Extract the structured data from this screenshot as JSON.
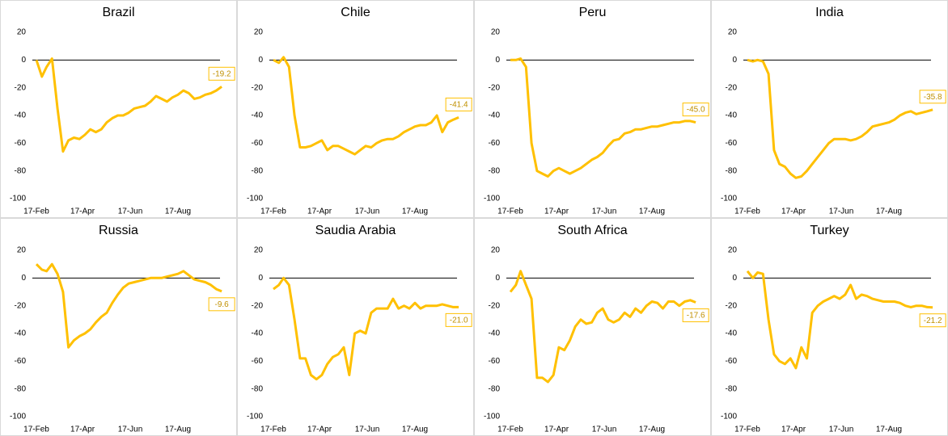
{
  "chart_data": [
    {
      "type": "line",
      "title": "Brazil",
      "label_position": "above",
      "x": [
        "17-Feb",
        "24-Feb",
        "2-Mar",
        "9-Mar",
        "16-Mar",
        "23-Mar",
        "30-Mar",
        "6-Apr",
        "13-Apr",
        "20-Apr",
        "27-Apr",
        "4-May",
        "11-May",
        "18-May",
        "25-May",
        "1-Jun",
        "8-Jun",
        "15-Jun",
        "22-Jun",
        "29-Jun",
        "6-Jul",
        "13-Jul",
        "20-Jul",
        "27-Jul",
        "3-Aug",
        "10-Aug",
        "17-Aug",
        "24-Aug",
        "31-Aug",
        "7-Sep",
        "14-Sep",
        "21-Sep",
        "28-Sep",
        "5-Oct",
        "12-Oct"
      ],
      "series": [
        {
          "color": "#FFC000",
          "values": [
            0,
            -12,
            -5,
            1,
            -35,
            -66,
            -58,
            -56,
            -57,
            -54,
            -50,
            -52,
            -50,
            -45,
            -42,
            -40,
            -40,
            -38,
            -35,
            -34,
            -33,
            -30,
            -26,
            -28,
            -30,
            -27,
            -25,
            -22,
            -24,
            -28,
            -27,
            -25,
            -24,
            -22,
            -19.2
          ]
        }
      ],
      "ylim": [
        -100,
        20
      ],
      "yticks": [
        -100,
        -80,
        -60,
        -40,
        -20,
        0,
        20
      ],
      "xticks": [
        "17-Feb",
        "17-Apr",
        "17-Jun",
        "17-Aug"
      ]
    },
    {
      "type": "line",
      "title": "Chile",
      "label_position": "above",
      "x": [
        "17-Feb",
        "24-Feb",
        "2-Mar",
        "9-Mar",
        "16-Mar",
        "23-Mar",
        "30-Mar",
        "6-Apr",
        "13-Apr",
        "20-Apr",
        "27-Apr",
        "4-May",
        "11-May",
        "18-May",
        "25-May",
        "1-Jun",
        "8-Jun",
        "15-Jun",
        "22-Jun",
        "29-Jun",
        "6-Jul",
        "13-Jul",
        "20-Jul",
        "27-Jul",
        "3-Aug",
        "10-Aug",
        "17-Aug",
        "24-Aug",
        "31-Aug",
        "7-Sep",
        "14-Sep",
        "21-Sep",
        "28-Sep",
        "5-Oct",
        "12-Oct"
      ],
      "series": [
        {
          "color": "#FFC000",
          "values": [
            0,
            -2,
            2,
            -5,
            -40,
            -63,
            -63,
            -62,
            -60,
            -58,
            -65,
            -62,
            -62,
            -64,
            -66,
            -68,
            -65,
            -62,
            -63,
            -60,
            -58,
            -57,
            -57,
            -55,
            -52,
            -50,
            -48,
            -47,
            -47,
            -45,
            -40,
            -52,
            -45,
            -43,
            -41.4
          ]
        }
      ],
      "ylim": [
        -100,
        20
      ],
      "yticks": [
        -100,
        -80,
        -60,
        -40,
        -20,
        0,
        20
      ],
      "xticks": [
        "17-Feb",
        "17-Apr",
        "17-Jun",
        "17-Aug"
      ]
    },
    {
      "type": "line",
      "title": "Peru",
      "label_position": "above",
      "x": [
        "17-Feb",
        "24-Feb",
        "2-Mar",
        "9-Mar",
        "16-Mar",
        "23-Mar",
        "30-Mar",
        "6-Apr",
        "13-Apr",
        "20-Apr",
        "27-Apr",
        "4-May",
        "11-May",
        "18-May",
        "25-May",
        "1-Jun",
        "8-Jun",
        "15-Jun",
        "22-Jun",
        "29-Jun",
        "6-Jul",
        "13-Jul",
        "20-Jul",
        "27-Jul",
        "3-Aug",
        "10-Aug",
        "17-Aug",
        "24-Aug",
        "31-Aug",
        "7-Sep",
        "14-Sep",
        "21-Sep",
        "28-Sep",
        "5-Oct",
        "12-Oct"
      ],
      "series": [
        {
          "color": "#FFC000",
          "values": [
            0,
            0,
            1,
            -5,
            -60,
            -80,
            -82,
            -84,
            -80,
            -78,
            -80,
            -82,
            -80,
            -78,
            -75,
            -72,
            -70,
            -67,
            -62,
            -58,
            -57,
            -53,
            -52,
            -50,
            -50,
            -49,
            -48,
            -48,
            -47,
            -46,
            -45,
            -45,
            -44,
            -44,
            -45
          ],
          "value_labels": [
            null,
            null,
            null,
            null,
            null,
            null,
            null,
            null,
            null,
            null,
            null,
            null,
            null,
            null,
            null,
            null,
            null,
            null,
            null,
            null,
            null,
            null,
            null,
            null,
            null,
            null,
            null,
            null,
            null,
            null,
            null,
            null,
            null,
            null,
            "-45.0"
          ]
        }
      ],
      "ylim": [
        -100,
        20
      ],
      "yticks": [
        -100,
        -80,
        -60,
        -40,
        -20,
        0,
        20
      ],
      "xticks": [
        "17-Feb",
        "17-Apr",
        "17-Jun",
        "17-Aug"
      ]
    },
    {
      "type": "line",
      "title": "India",
      "label_position": "above",
      "x": [
        "17-Feb",
        "24-Feb",
        "2-Mar",
        "9-Mar",
        "16-Mar",
        "23-Mar",
        "30-Mar",
        "6-Apr",
        "13-Apr",
        "20-Apr",
        "27-Apr",
        "4-May",
        "11-May",
        "18-May",
        "25-May",
        "1-Jun",
        "8-Jun",
        "15-Jun",
        "22-Jun",
        "29-Jun",
        "6-Jul",
        "13-Jul",
        "20-Jul",
        "27-Jul",
        "3-Aug",
        "10-Aug",
        "17-Aug",
        "24-Aug",
        "31-Aug",
        "7-Sep",
        "14-Sep",
        "21-Sep",
        "28-Sep",
        "5-Oct",
        "12-Oct"
      ],
      "series": [
        {
          "color": "#FFC000",
          "values": [
            0,
            -1,
            0,
            -1,
            -10,
            -65,
            -75,
            -77,
            -82,
            -85,
            -84,
            -80,
            -75,
            -70,
            -65,
            -60,
            -57,
            -57,
            -57,
            -58,
            -57,
            -55,
            -52,
            -48,
            -47,
            -46,
            -45,
            -43,
            -40,
            -38,
            -37,
            -39,
            -38,
            -37,
            -35.8
          ]
        }
      ],
      "ylim": [
        -100,
        20
      ],
      "yticks": [
        -100,
        -80,
        -60,
        -40,
        -20,
        0,
        20
      ],
      "xticks": [
        "17-Feb",
        "17-Apr",
        "17-Jun",
        "17-Aug"
      ]
    },
    {
      "type": "line",
      "title": "Russia",
      "label_position": "below",
      "x": [
        "17-Feb",
        "24-Feb",
        "2-Mar",
        "9-Mar",
        "16-Mar",
        "23-Mar",
        "30-Mar",
        "6-Apr",
        "13-Apr",
        "20-Apr",
        "27-Apr",
        "4-May",
        "11-May",
        "18-May",
        "25-May",
        "1-Jun",
        "8-Jun",
        "15-Jun",
        "22-Jun",
        "29-Jun",
        "6-Jul",
        "13-Jul",
        "20-Jul",
        "27-Jul",
        "3-Aug",
        "10-Aug",
        "17-Aug",
        "24-Aug",
        "31-Aug",
        "7-Sep",
        "14-Sep",
        "21-Sep",
        "28-Sep",
        "5-Oct",
        "12-Oct"
      ],
      "series": [
        {
          "color": "#FFC000",
          "values": [
            10,
            6,
            5,
            10,
            3,
            -10,
            -50,
            -45,
            -42,
            -40,
            -37,
            -32,
            -28,
            -25,
            -18,
            -12,
            -7,
            -4,
            -3,
            -2,
            -1,
            0,
            0,
            0,
            1,
            2,
            3,
            5,
            2,
            -1,
            -2,
            -3,
            -5,
            -8,
            -9.6
          ]
        }
      ],
      "ylim": [
        -100,
        20
      ],
      "yticks": [
        -100,
        -80,
        -60,
        -40,
        -20,
        0,
        20
      ],
      "xticks": [
        "17-Feb",
        "17-Apr",
        "17-Jun",
        "17-Aug"
      ]
    },
    {
      "type": "line",
      "title": "Saudia Arabia",
      "label_position": "below",
      "x": [
        "17-Feb",
        "24-Feb",
        "2-Mar",
        "9-Mar",
        "16-Mar",
        "23-Mar",
        "30-Mar",
        "6-Apr",
        "13-Apr",
        "20-Apr",
        "27-Apr",
        "4-May",
        "11-May",
        "18-May",
        "25-May",
        "1-Jun",
        "8-Jun",
        "15-Jun",
        "22-Jun",
        "29-Jun",
        "6-Jul",
        "13-Jul",
        "20-Jul",
        "27-Jul",
        "3-Aug",
        "10-Aug",
        "17-Aug",
        "24-Aug",
        "31-Aug",
        "7-Sep",
        "14-Sep",
        "21-Sep",
        "28-Sep",
        "5-Oct",
        "12-Oct"
      ],
      "series": [
        {
          "color": "#FFC000",
          "values": [
            -8,
            -5,
            0,
            -5,
            -30,
            -58,
            -58,
            -70,
            -73,
            -70,
            -62,
            -57,
            -55,
            -50,
            -70,
            -40,
            -38,
            -40,
            -25,
            -22,
            -22,
            -22,
            -15,
            -22,
            -20,
            -22,
            -18,
            -22,
            -20,
            -20,
            -20,
            -19,
            -20,
            -21,
            -21
          ],
          "value_labels": [
            null,
            null,
            null,
            null,
            null,
            null,
            null,
            null,
            null,
            null,
            null,
            null,
            null,
            null,
            null,
            null,
            null,
            null,
            null,
            null,
            null,
            null,
            null,
            null,
            null,
            null,
            null,
            null,
            null,
            null,
            null,
            null,
            null,
            null,
            "-21.0"
          ]
        }
      ],
      "ylim": [
        -100,
        20
      ],
      "yticks": [
        -100,
        -80,
        -60,
        -40,
        -20,
        0,
        20
      ],
      "xticks": [
        "17-Feb",
        "17-Apr",
        "17-Jun",
        "17-Aug"
      ]
    },
    {
      "type": "line",
      "title": "South Africa",
      "label_position": "below",
      "x": [
        "17-Feb",
        "24-Feb",
        "2-Mar",
        "9-Mar",
        "16-Mar",
        "23-Mar",
        "30-Mar",
        "6-Apr",
        "13-Apr",
        "20-Apr",
        "27-Apr",
        "4-May",
        "11-May",
        "18-May",
        "25-May",
        "1-Jun",
        "8-Jun",
        "15-Jun",
        "22-Jun",
        "29-Jun",
        "6-Jul",
        "13-Jul",
        "20-Jul",
        "27-Jul",
        "3-Aug",
        "10-Aug",
        "17-Aug",
        "24-Aug",
        "31-Aug",
        "7-Sep",
        "14-Sep",
        "21-Sep",
        "28-Sep",
        "5-Oct",
        "12-Oct"
      ],
      "series": [
        {
          "color": "#FFC000",
          "values": [
            -10,
            -5,
            5,
            -5,
            -15,
            -72,
            -72,
            -75,
            -70,
            -50,
            -52,
            -45,
            -35,
            -30,
            -33,
            -32,
            -25,
            -22,
            -30,
            -32,
            -30,
            -25,
            -28,
            -22,
            -25,
            -20,
            -17,
            -18,
            -22,
            -17,
            -17,
            -20,
            -17,
            -16,
            -17.6
          ]
        }
      ],
      "ylim": [
        -100,
        20
      ],
      "yticks": [
        -100,
        -80,
        -60,
        -40,
        -20,
        0,
        20
      ],
      "xticks": [
        "17-Feb",
        "17-Apr",
        "17-Jun",
        "17-Aug"
      ]
    },
    {
      "type": "line",
      "title": "Turkey",
      "label_position": "below",
      "x": [
        "17-Feb",
        "24-Feb",
        "2-Mar",
        "9-Mar",
        "16-Mar",
        "23-Mar",
        "30-Mar",
        "6-Apr",
        "13-Apr",
        "20-Apr",
        "27-Apr",
        "4-May",
        "11-May",
        "18-May",
        "25-May",
        "1-Jun",
        "8-Jun",
        "15-Jun",
        "22-Jun",
        "29-Jun",
        "6-Jul",
        "13-Jul",
        "20-Jul",
        "27-Jul",
        "3-Aug",
        "10-Aug",
        "17-Aug",
        "24-Aug",
        "31-Aug",
        "7-Sep",
        "14-Sep",
        "21-Sep",
        "28-Sep",
        "5-Oct",
        "12-Oct"
      ],
      "series": [
        {
          "color": "#FFC000",
          "values": [
            5,
            0,
            4,
            3,
            -30,
            -55,
            -60,
            -62,
            -58,
            -65,
            -50,
            -58,
            -25,
            -20,
            -17,
            -15,
            -13,
            -15,
            -12,
            -5,
            -15,
            -12,
            -13,
            -15,
            -16,
            -17,
            -17,
            -17,
            -18,
            -20,
            -21,
            -20,
            -20,
            -21,
            -21.2
          ]
        }
      ],
      "ylim": [
        -100,
        20
      ],
      "yticks": [
        -100,
        -80,
        -60,
        -40,
        -20,
        0,
        20
      ],
      "xticks": [
        "17-Feb",
        "17-Apr",
        "17-Jun",
        "17-Aug"
      ]
    }
  ]
}
